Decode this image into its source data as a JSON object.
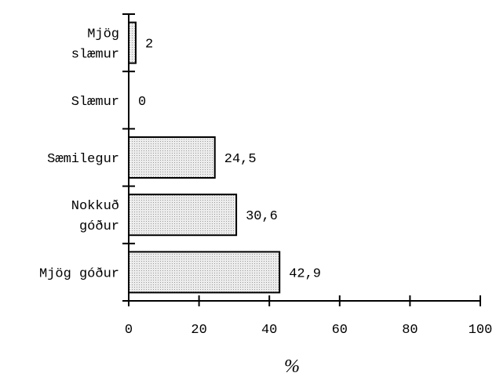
{
  "chart_data": {
    "type": "bar",
    "orientation": "horizontal",
    "categories": [
      [
        "Mjög",
        "slæmur"
      ],
      [
        "Slæmur"
      ],
      [
        "Sæmilegur"
      ],
      [
        "Nokkuð",
        "góður"
      ],
      [
        "Mjög góður"
      ]
    ],
    "values": [
      2,
      0,
      24.5,
      30.6,
      42.9
    ],
    "value_labels": [
      "2",
      "0",
      "24,5",
      "30,6",
      "42,9"
    ],
    "xlabel": "%",
    "xlim": [
      0,
      100
    ],
    "xticks": [
      0,
      20,
      40,
      60,
      80,
      100
    ],
    "grid": false,
    "legend": "none",
    "bar_fill": "#d9d9d9",
    "bar_stroke": "#000000"
  }
}
